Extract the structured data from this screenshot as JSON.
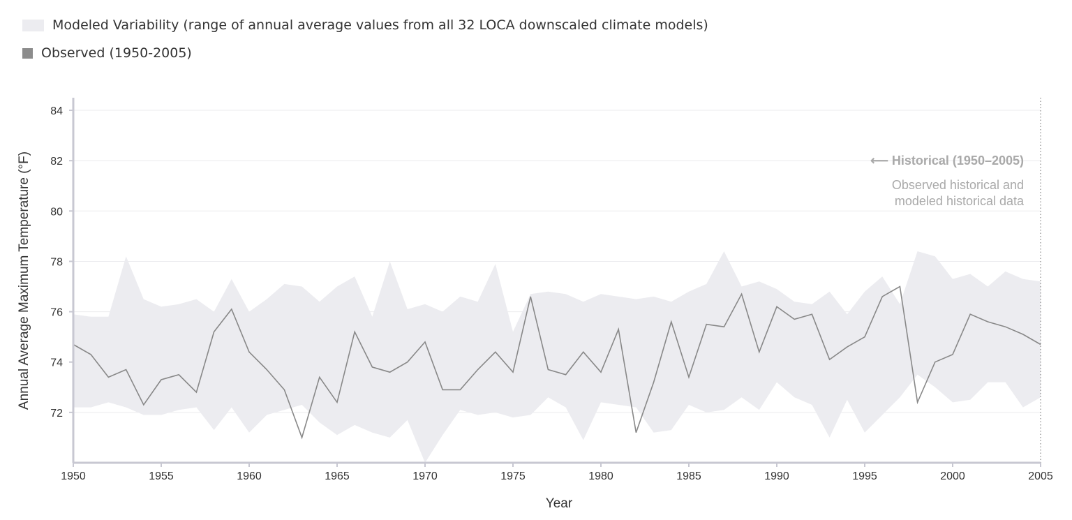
{
  "legend": {
    "variability_label": "Modeled Variability (range of annual average values from all 32 LOCA downscaled climate models)",
    "observed_label": "Observed (1950-2005)"
  },
  "annotation": {
    "title": "⟵ Historical (1950–2005)",
    "line1": "Observed historical and",
    "line2": "modeled historical data"
  },
  "colors": {
    "band": "#ececf0",
    "observed_line": "#888888",
    "observed_swatch": "#8c8c8c",
    "axis": "#c8c8d2",
    "grid": "#ebebee",
    "annotation": "#a9a9a9",
    "text": "#333333"
  },
  "chart_data": {
    "type": "area",
    "title": "",
    "xlabel": "Year",
    "ylabel": "Annual Average Maximum Temperature (°F)",
    "xlim": [
      1950,
      2005
    ],
    "ylim": [
      70,
      84.5
    ],
    "xticks": [
      1950,
      1955,
      1960,
      1965,
      1970,
      1975,
      1980,
      1985,
      1990,
      1995,
      2000,
      2005
    ],
    "yticks": [
      72,
      74,
      76,
      78,
      80,
      82,
      84
    ],
    "grid": true,
    "x": [
      1950,
      1951,
      1952,
      1953,
      1954,
      1955,
      1956,
      1957,
      1958,
      1959,
      1960,
      1961,
      1962,
      1963,
      1964,
      1965,
      1966,
      1967,
      1968,
      1969,
      1970,
      1971,
      1972,
      1973,
      1974,
      1975,
      1976,
      1977,
      1978,
      1979,
      1980,
      1981,
      1982,
      1983,
      1984,
      1985,
      1986,
      1987,
      1988,
      1989,
      1990,
      1991,
      1992,
      1993,
      1994,
      1995,
      1996,
      1997,
      1998,
      1999,
      2000,
      2001,
      2002,
      2003,
      2004,
      2005
    ],
    "series": [
      {
        "name": "Modeled Variability (max)",
        "values": [
          75.9,
          75.8,
          75.8,
          78.2,
          76.5,
          76.2,
          76.3,
          76.5,
          76.0,
          77.3,
          76.0,
          76.5,
          77.1,
          77.0,
          76.4,
          77.0,
          77.4,
          75.8,
          78.0,
          76.1,
          76.3,
          76.0,
          76.6,
          76.4,
          77.9,
          75.2,
          76.7,
          76.8,
          76.7,
          76.4,
          76.7,
          76.6,
          76.5,
          76.6,
          76.4,
          76.8,
          77.1,
          78.4,
          77.0,
          77.2,
          76.9,
          76.4,
          76.3,
          76.8,
          75.9,
          76.8,
          77.4,
          76.3,
          78.4,
          78.2,
          77.3,
          77.5,
          77.0,
          77.6,
          77.3,
          77.2
        ]
      },
      {
        "name": "Modeled Variability (min)",
        "values": [
          72.2,
          72.2,
          72.4,
          72.2,
          71.9,
          71.9,
          72.1,
          72.2,
          71.3,
          72.2,
          71.2,
          71.9,
          72.1,
          72.3,
          71.6,
          71.1,
          71.5,
          71.2,
          71.0,
          71.7,
          70.0,
          71.1,
          72.1,
          71.9,
          72.0,
          71.8,
          71.9,
          72.6,
          72.2,
          70.9,
          72.4,
          72.3,
          72.2,
          71.2,
          71.3,
          72.3,
          72.0,
          72.1,
          72.6,
          72.1,
          73.2,
          72.6,
          72.3,
          71.0,
          72.5,
          71.2,
          71.9,
          72.6,
          73.5,
          73.0,
          72.4,
          72.5,
          73.2,
          73.2,
          72.2,
          72.6
        ]
      },
      {
        "name": "Observed (1950-2005)",
        "values": [
          74.7,
          74.3,
          73.4,
          73.7,
          72.3,
          73.3,
          73.5,
          72.8,
          75.2,
          76.1,
          74.4,
          73.7,
          72.9,
          71.0,
          73.4,
          72.4,
          75.2,
          73.8,
          73.6,
          74.0,
          74.8,
          72.9,
          72.9,
          73.7,
          74.4,
          73.6,
          76.6,
          73.7,
          73.5,
          74.4,
          73.6,
          75.3,
          71.2,
          73.2,
          75.6,
          73.4,
          75.5,
          75.4,
          76.7,
          74.4,
          76.2,
          75.7,
          75.9,
          74.1,
          74.6,
          75.0,
          76.6,
          77.0,
          72.4,
          74.0,
          74.3,
          75.9,
          75.6,
          75.4,
          75.1,
          74.7
        ]
      }
    ]
  }
}
